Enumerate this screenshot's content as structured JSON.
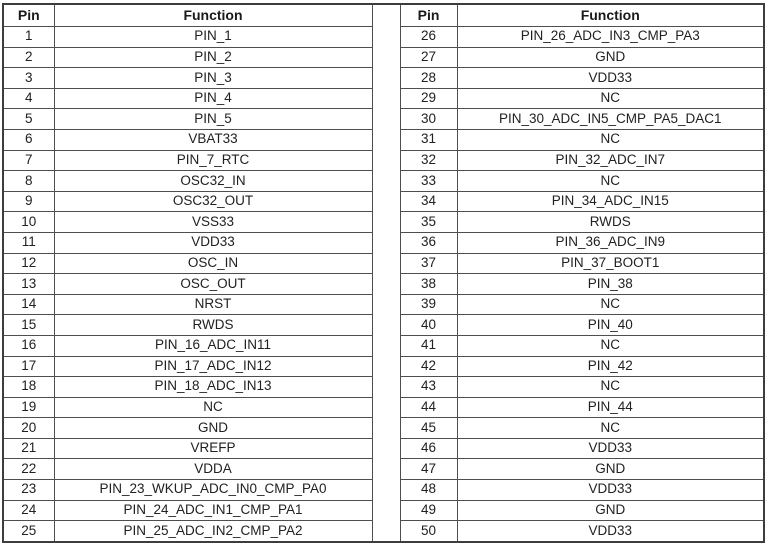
{
  "document": {
    "type": "pin-assignment-table",
    "colors": {
      "background": "#ffffff",
      "border_outer": "#3d3d3d",
      "border_inner": "#4e4e4e",
      "text": "#212121"
    }
  },
  "left_table": {
    "pin_header": "Pin",
    "function_header": "Function",
    "rows": [
      [
        "1",
        "PIN_1"
      ],
      [
        "2",
        "PIN_2"
      ],
      [
        "3",
        "PIN_3"
      ],
      [
        "4",
        "PIN_4"
      ],
      [
        "5",
        "PIN_5"
      ],
      [
        "6",
        "VBAT33"
      ],
      [
        "7",
        "PIN_7_RTC"
      ],
      [
        "8",
        "OSC32_IN"
      ],
      [
        "9",
        "OSC32_OUT"
      ],
      [
        "10",
        "VSS33"
      ],
      [
        "11",
        "VDD33"
      ],
      [
        "12",
        "OSC_IN"
      ],
      [
        "13",
        "OSC_OUT"
      ],
      [
        "14",
        "NRST"
      ],
      [
        "15",
        "RWDS"
      ],
      [
        "16",
        "PIN_16_ADC_IN11"
      ],
      [
        "17",
        "PIN_17_ADC_IN12"
      ],
      [
        "18",
        "PIN_18_ADC_IN13"
      ],
      [
        "19",
        "NC"
      ],
      [
        "20",
        "GND"
      ],
      [
        "21",
        "VREFP"
      ],
      [
        "22",
        "VDDA"
      ],
      [
        "23",
        "PIN_23_WKUP_ADC_IN0_CMP_PA0"
      ],
      [
        "24",
        "PIN_24_ADC_IN1_CMP_PA1"
      ],
      [
        "25",
        "PIN_25_ADC_IN2_CMP_PA2"
      ]
    ]
  },
  "right_table": {
    "pin_header": "Pin",
    "function_header": "Function",
    "rows": [
      [
        "26",
        "PIN_26_ADC_IN3_CMP_PA3"
      ],
      [
        "27",
        "GND"
      ],
      [
        "28",
        "VDD33"
      ],
      [
        "29",
        "NC"
      ],
      [
        "30",
        "PIN_30_ADC_IN5_CMP_PA5_DAC1"
      ],
      [
        "31",
        "NC"
      ],
      [
        "32",
        "PIN_32_ADC_IN7"
      ],
      [
        "33",
        "NC"
      ],
      [
        "34",
        "PIN_34_ADC_IN15"
      ],
      [
        "35",
        "RWDS"
      ],
      [
        "36",
        "PIN_36_ADC_IN9"
      ],
      [
        "37",
        "PIN_37_BOOT1"
      ],
      [
        "38",
        "PIN_38"
      ],
      [
        "39",
        "NC"
      ],
      [
        "40",
        "PIN_40"
      ],
      [
        "41",
        "NC"
      ],
      [
        "42",
        "PIN_42"
      ],
      [
        "43",
        "NC"
      ],
      [
        "44",
        "PIN_44"
      ],
      [
        "45",
        "NC"
      ],
      [
        "46",
        "VDD33"
      ],
      [
        "47",
        "GND"
      ],
      [
        "48",
        "VDD33"
      ],
      [
        "49",
        "GND"
      ],
      [
        "50",
        "VDD33"
      ]
    ]
  }
}
